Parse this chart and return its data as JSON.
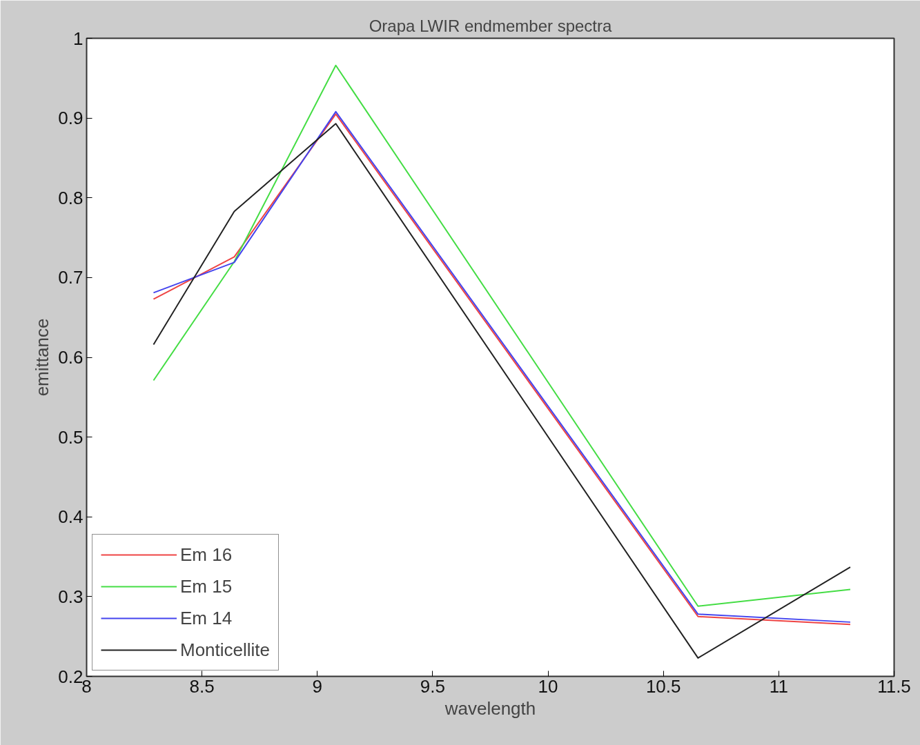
{
  "chart_data": {
    "type": "line",
    "title": "Orapa LWIR endmember spectra",
    "xlabel": "wavelength",
    "ylabel": "emittance",
    "x": [
      8.29,
      8.64,
      9.08,
      10.65,
      11.31
    ],
    "series": [
      {
        "name": "Em 16",
        "color": "#ee4444",
        "values": [
          0.673,
          0.726,
          0.905,
          0.275,
          0.265
        ]
      },
      {
        "name": "Em 15",
        "color": "#44dd44",
        "values": [
          0.571,
          0.72,
          0.966,
          0.288,
          0.309
        ]
      },
      {
        "name": "Em 14",
        "color": "#4444ee",
        "values": [
          0.681,
          0.719,
          0.908,
          0.278,
          0.268
        ]
      },
      {
        "name": "Monticellite",
        "color": "#222222",
        "values": [
          0.616,
          0.783,
          0.893,
          0.223,
          0.337
        ]
      }
    ],
    "xlim": [
      8,
      11.5
    ],
    "xticks": [
      8,
      8.5,
      9,
      9.5,
      10,
      10.5,
      11,
      11.5
    ],
    "ylim": [
      0.2,
      1
    ],
    "yticks": [
      0.2,
      0.3,
      0.4,
      0.5,
      0.6,
      0.7,
      0.8,
      0.9,
      1
    ],
    "grid": false,
    "legend": "bottom left",
    "line_style": "solid",
    "marker": "none"
  }
}
